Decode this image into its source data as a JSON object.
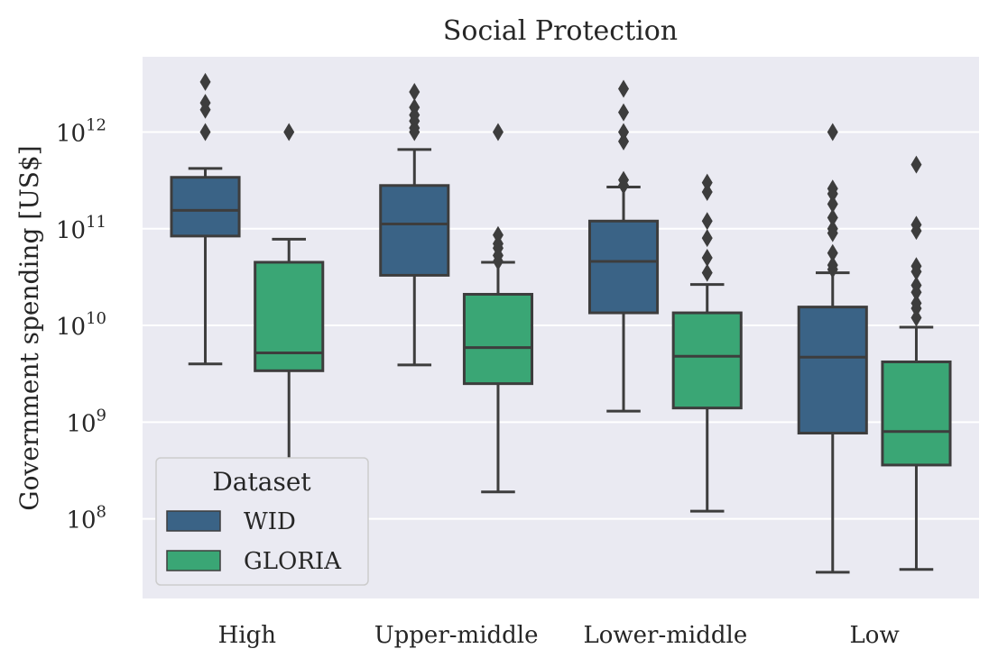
{
  "chart_data": {
    "type": "box",
    "title": "Social Protection",
    "xlabel": "",
    "ylabel": "Government spending [US$]",
    "yscale": "log",
    "ylim": [
      15000000.0,
      6000000000000.0
    ],
    "yticks": [
      {
        "value": 100000000.0,
        "base": "10",
        "exp": "8"
      },
      {
        "value": 1000000000.0,
        "base": "10",
        "exp": "9"
      },
      {
        "value": 10000000000.0,
        "base": "10",
        "exp": "10"
      },
      {
        "value": 100000000000.0,
        "base": "10",
        "exp": "11"
      },
      {
        "value": 1000000000000.0,
        "base": "10",
        "exp": "12"
      }
    ],
    "grid": true,
    "categories": [
      "High",
      "Upper-middle",
      "Lower-middle",
      "Low"
    ],
    "legend": {
      "title": "Dataset",
      "position": "lower-left"
    },
    "series": [
      {
        "name": "WID",
        "color": "#3a6386",
        "boxes": [
          {
            "whislo": 4000000000.0,
            "q1": 84000000000.0,
            "med": 155000000000.0,
            "q3": 340000000000.0,
            "whishi": 420000000000.0,
            "fliers": [
              1000000000000.0,
              1700000000000.0,
              2000000000000.0,
              3300000000000.0
            ]
          },
          {
            "whislo": 3900000000.0,
            "q1": 33000000000.0,
            "med": 112000000000.0,
            "q3": 280000000000.0,
            "whishi": 660000000000.0,
            "fliers": [
              1000000000000.0,
              1100000000000.0,
              1300000000000.0,
              1500000000000.0,
              1800000000000.0,
              2600000000000.0
            ]
          },
          {
            "whislo": 1300000000.0,
            "q1": 13500000000.0,
            "med": 46000000000.0,
            "q3": 120000000000.0,
            "whishi": 270000000000.0,
            "fliers": [
              280000000000.0,
              320000000000.0,
              800000000000.0,
              1000000000000.0,
              1600000000000.0,
              2800000000000.0
            ]
          },
          {
            "whislo": 28000000.0,
            "q1": 770000000.0,
            "med": 4700000000.0,
            "q3": 15500000000.0,
            "whishi": 35000000000.0,
            "fliers": [
              38000000000.0,
              42000000000.0,
              56000000000.0,
              90000000000.0,
              100000000000.0,
              130000000000.0,
              180000000000.0,
              230000000000.0,
              260000000000.0,
              1000000000000.0
            ]
          }
        ]
      },
      {
        "name": "GLORIA",
        "color": "#3aa675",
        "boxes": [
          {
            "whislo": 200000000.0,
            "q1": 3400000000.0,
            "med": 5200000000.0,
            "q3": 45000000000.0,
            "whishi": 78000000000.0,
            "fliers": [
              1000000000000.0
            ]
          },
          {
            "whislo": 190000000.0,
            "q1": 2500000000.0,
            "med": 5900000000.0,
            "q3": 21000000000.0,
            "whishi": 45000000000.0,
            "fliers": [
              46000000000.0,
              53000000000.0,
              63000000000.0,
              70000000000.0,
              86000000000.0,
              1000000000000.0
            ]
          },
          {
            "whislo": 120000000.0,
            "q1": 1400000000.0,
            "med": 4800000000.0,
            "q3": 13500000000.0,
            "whishi": 26500000000.0,
            "fliers": [
              35000000000.0,
              50000000000.0,
              80000000000.0,
              120000000000.0,
              240000000000.0,
              300000000000.0
            ]
          },
          {
            "whislo": 30000000.0,
            "q1": 360000000.0,
            "med": 800000000.0,
            "q3": 4200000000.0,
            "whishi": 9600000000.0,
            "fliers": [
              12000000000.0,
              15000000000.0,
              17000000000.0,
              22000000000.0,
              26000000000.0,
              36000000000.0,
              41000000000.0,
              95000000000.0,
              110000000000.0,
              460000000000.0
            ]
          }
        ]
      }
    ]
  }
}
